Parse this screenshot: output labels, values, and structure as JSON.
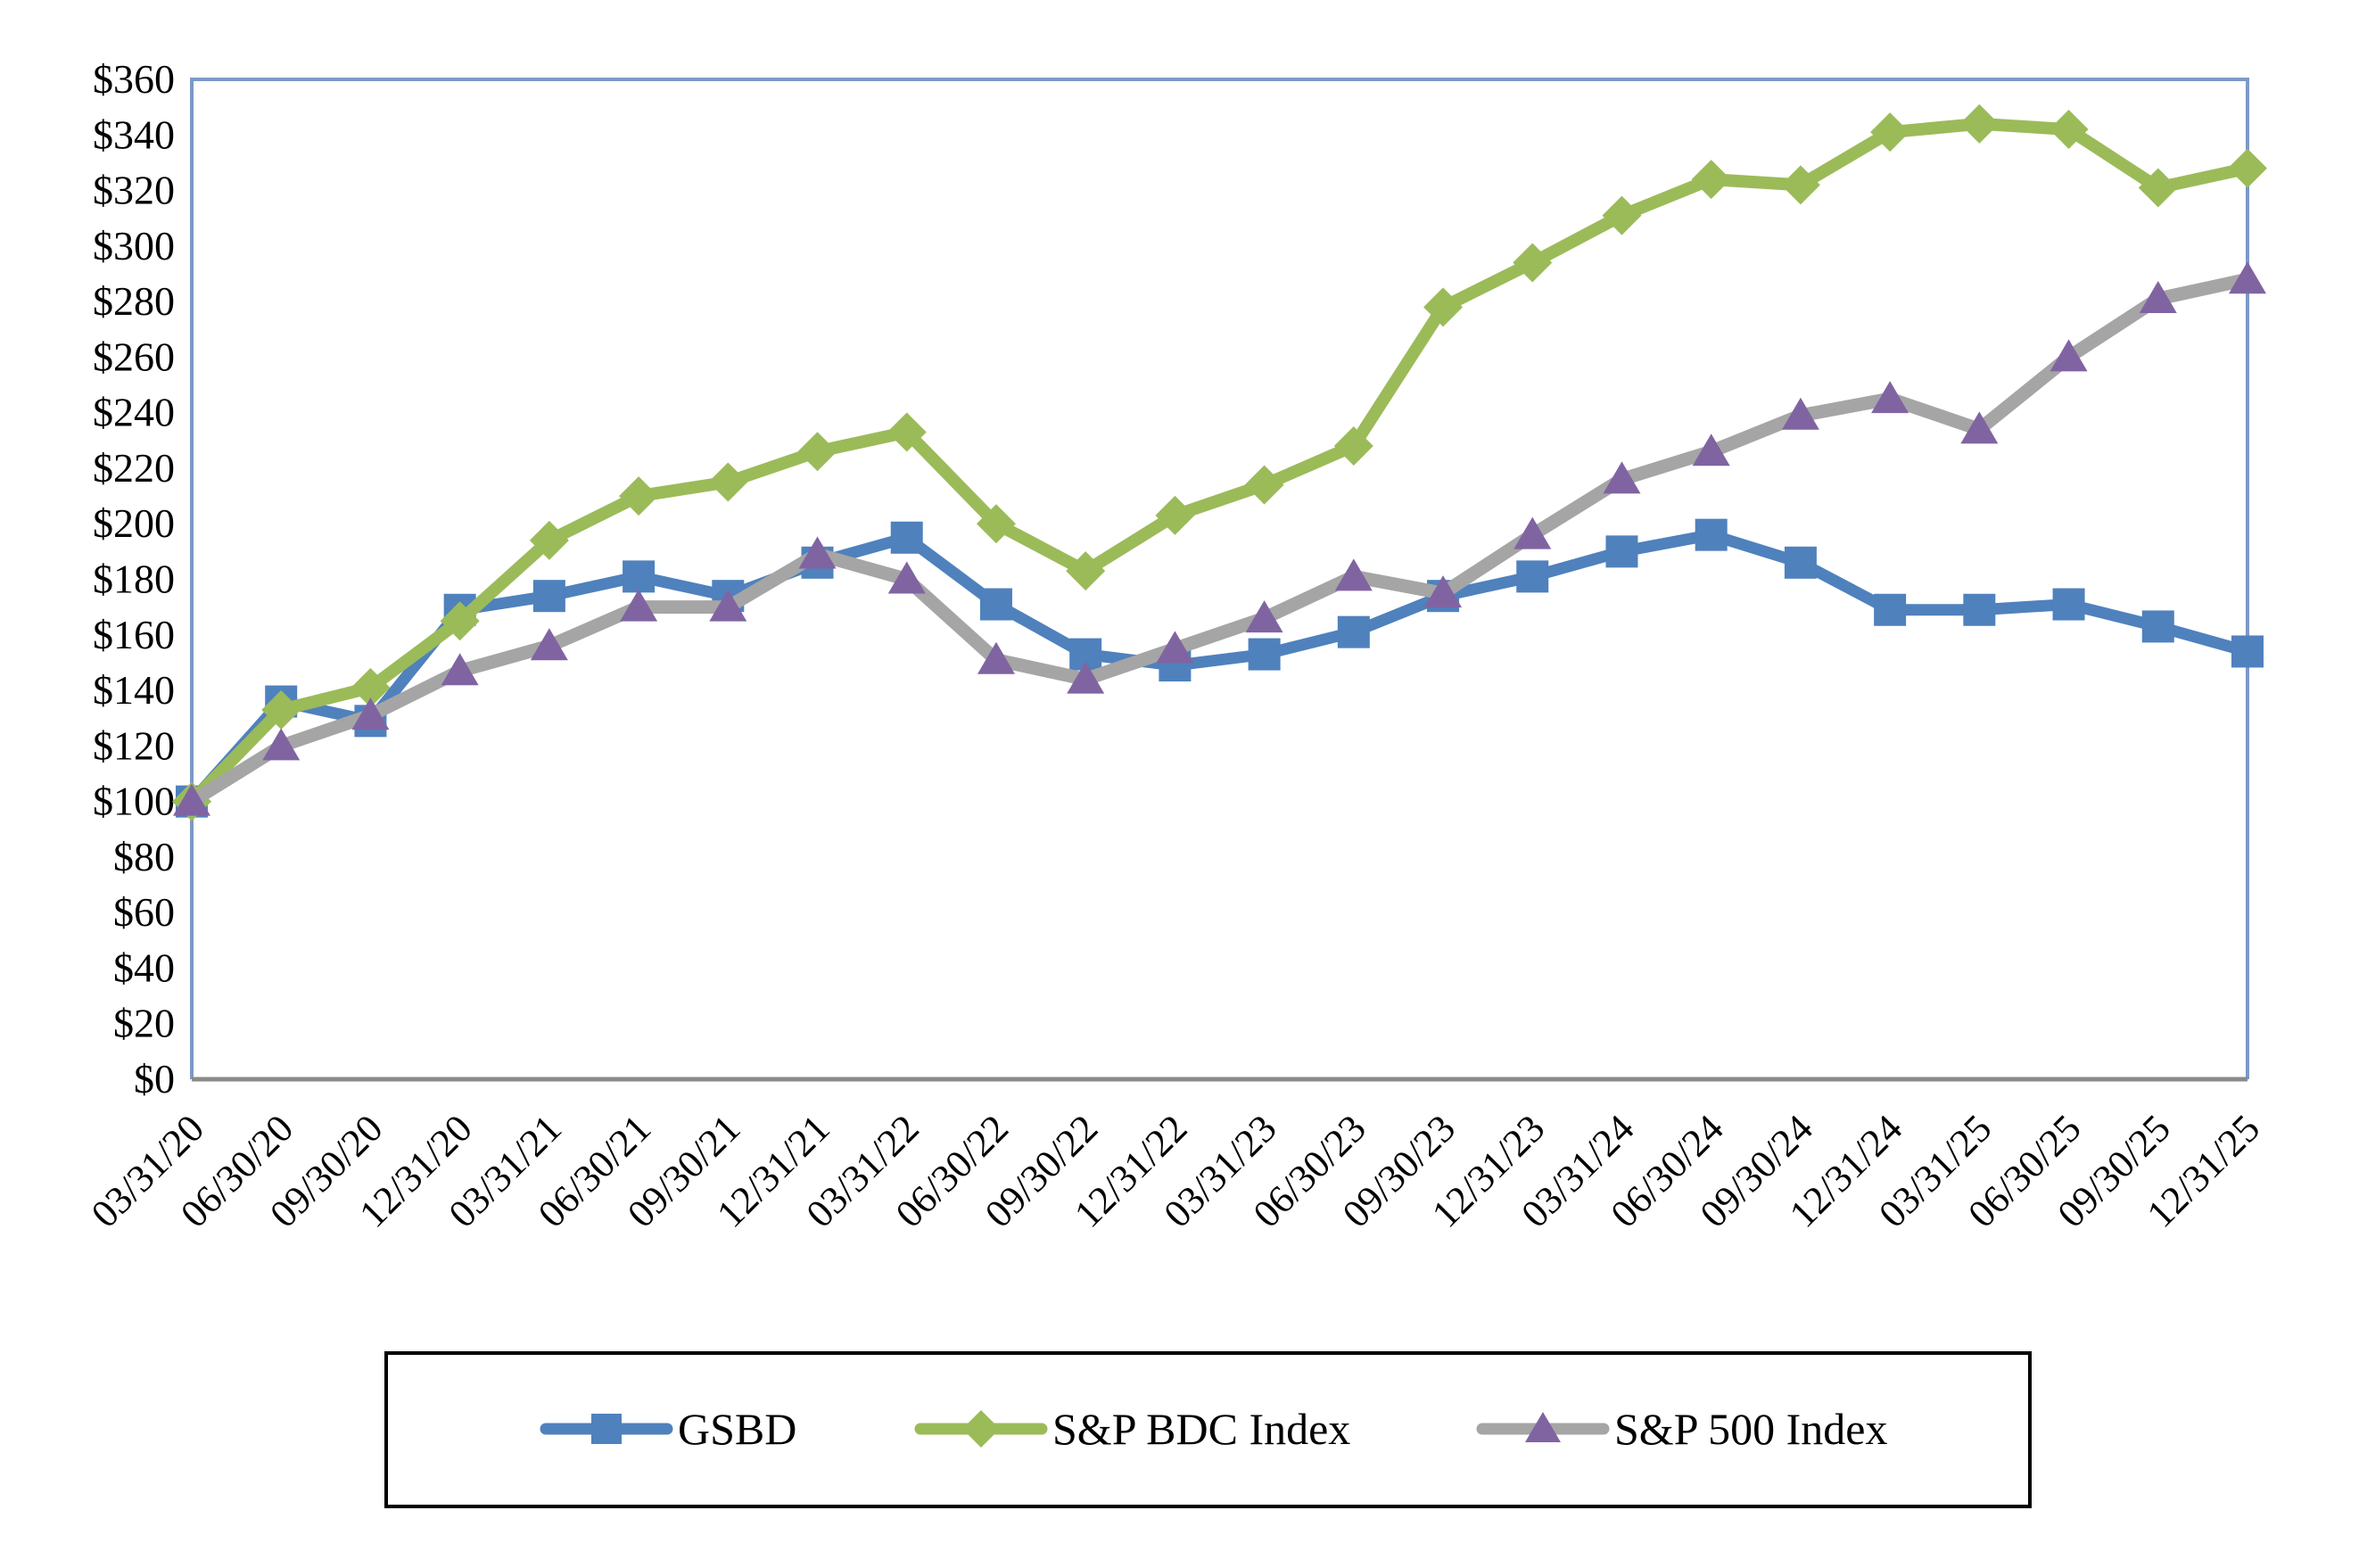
{
  "chart_data": {
    "type": "line",
    "title": "",
    "categories": [
      "03/31/20",
      "06/30/20",
      "09/30/20",
      "12/31/20",
      "03/31/21",
      "06/30/21",
      "09/30/21",
      "12/31/21",
      "03/31/22",
      "06/30/22",
      "09/30/22",
      "12/31/22",
      "03/31/23",
      "06/30/23",
      "09/30/23",
      "12/31/23",
      "03/31/24",
      "06/30/24",
      "09/30/24",
      "12/31/24",
      "03/31/25",
      "06/30/25",
      "09/30/25",
      "12/31/25"
    ],
    "series": [
      {
        "name": "GSBD",
        "marker": "square",
        "marker_color": "#4F81BD",
        "line_color": "#4F81BD",
        "values": [
          100,
          136,
          129,
          169,
          174,
          181,
          174,
          186,
          195,
          171,
          153,
          149,
          153,
          161,
          174,
          181,
          190,
          196,
          186,
          169,
          169,
          171,
          163,
          154
        ]
      },
      {
        "name": "S&P BDC Index",
        "marker": "diamond",
        "marker_color": "#9BBB59",
        "line_color": "#9BBB59",
        "values": [
          100,
          133,
          141,
          165,
          194,
          210,
          215,
          226,
          233,
          200,
          183,
          203,
          214,
          228,
          278,
          294,
          311,
          324,
          322,
          341,
          344,
          342,
          321,
          328
        ]
      },
      {
        "name": "S&P 500 Index",
        "marker": "triangle",
        "marker_color": "#8064A2",
        "line_color": "#A5A5A5",
        "values": [
          100,
          120,
          131,
          147,
          156,
          170,
          170,
          189,
          180,
          151,
          144,
          155,
          166,
          181,
          175,
          196,
          216,
          226,
          239,
          245,
          234,
          260,
          281,
          288
        ]
      }
    ],
    "xlabel": "",
    "ylabel": "",
    "ylim": [
      0,
      360
    ],
    "y_tick_step": 20,
    "y_tick_prefix": "$",
    "y_tick_labels": [
      "$0",
      "$20",
      "$40",
      "$60",
      "$80",
      "$100",
      "$120",
      "$140",
      "$160",
      "$180",
      "$200",
      "$220",
      "$240",
      "$260",
      "$280",
      "$300",
      "$320",
      "$340",
      "$360"
    ],
    "grid": false,
    "legend_position": "bottom"
  },
  "colors": {
    "background": "#FFFFFF",
    "plot_border": "#7C99C7",
    "bottom_axis": "#8A8A8A",
    "legend_border": "#000000",
    "text": "#000000"
  }
}
